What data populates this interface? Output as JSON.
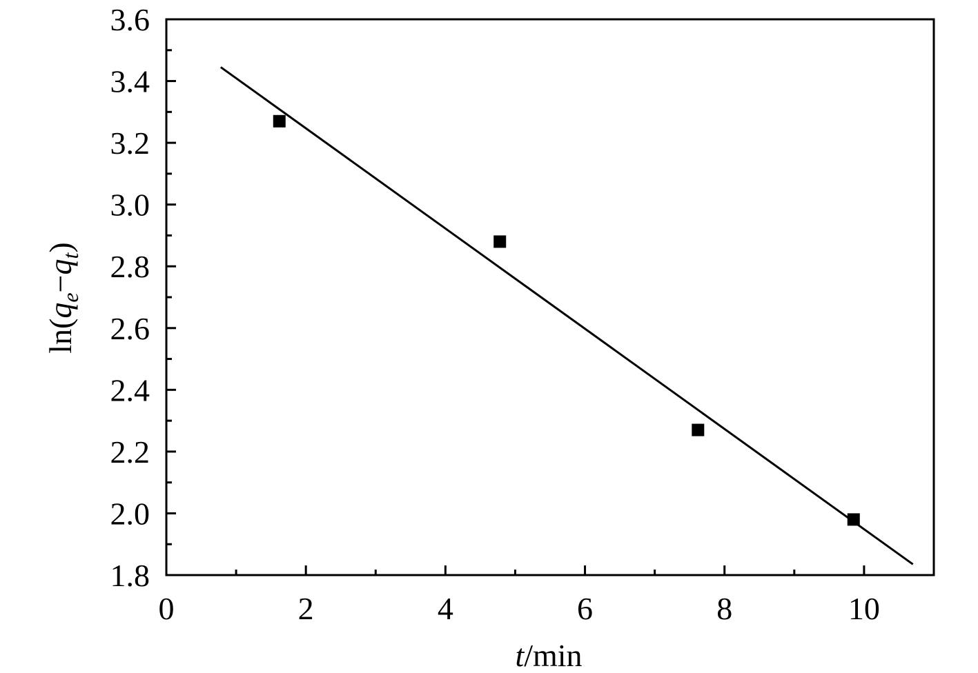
{
  "chart_data": {
    "type": "scatter",
    "title": "",
    "xlabel": {
      "italic": "t",
      "rest": "/min"
    },
    "ylabel": {
      "prefix": "ln(",
      "q1": "q",
      "sub1": "e",
      "minus": "−",
      "q2": "q",
      "sub2": "t",
      "suffix": ")"
    },
    "xlim": [
      0,
      11
    ],
    "ylim": [
      1.8,
      3.6
    ],
    "x_ticks": [
      "0",
      "2",
      "4",
      "6",
      "8",
      "10"
    ],
    "y_ticks": [
      "1.8",
      "2.0",
      "2.2",
      "2.4",
      "2.6",
      "2.8",
      "3.0",
      "3.2",
      "3.4",
      "3.6"
    ],
    "grid": false,
    "legend": "none",
    "series": [
      {
        "marker": "square",
        "x": [
          1.62,
          4.78,
          7.62,
          9.85
        ],
        "y": [
          3.27,
          2.88,
          2.27,
          1.98
        ]
      }
    ],
    "fit_line": {
      "x": [
        0.78,
        10.7
      ],
      "y": [
        3.445,
        1.835
      ]
    },
    "colors": {
      "marker": "#000000",
      "line": "#000000",
      "axes": "#000000"
    }
  }
}
